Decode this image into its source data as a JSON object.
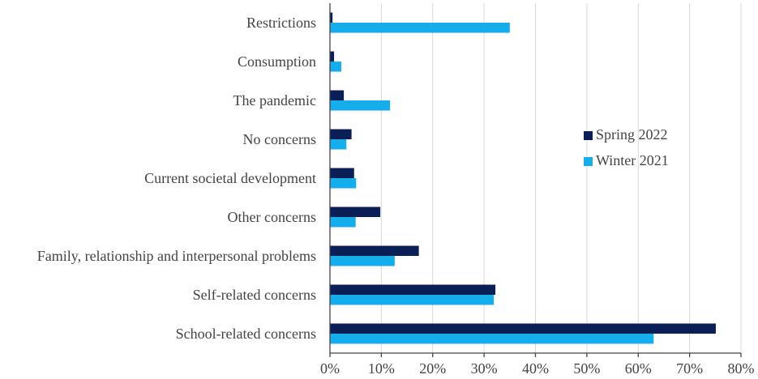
{
  "chart_data": {
    "type": "bar",
    "orientation": "horizontal",
    "title": "",
    "xlabel": "",
    "ylabel": "",
    "categories": [
      "Restrictions",
      "Consumption",
      "The pandemic",
      "No concerns",
      "Current societal development",
      "Other concerns",
      "Family, relationship and interpersonal problems",
      "Self-related concerns",
      "School-related concerns"
    ],
    "series": [
      {
        "name": "Spring 2022",
        "color": "#0b1f57",
        "values": [
          0.5,
          0.8,
          2.7,
          4.2,
          4.7,
          9.8,
          17.3,
          32.2,
          75.1
        ]
      },
      {
        "name": "Winter 2021",
        "color": "#15aeea",
        "values": [
          35.0,
          2.2,
          11.7,
          3.2,
          5.1,
          5.0,
          12.6,
          31.9,
          63.0
        ]
      }
    ],
    "xlim": [
      0,
      80
    ],
    "xticks": [
      "0%",
      "10%",
      "20%",
      "30%",
      "40%",
      "50%",
      "60%",
      "70%",
      "80%"
    ],
    "grid": "vertical",
    "legend_position": "right-middle"
  }
}
